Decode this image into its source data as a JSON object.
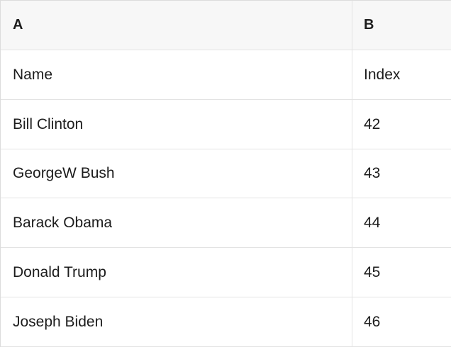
{
  "theme": {
    "header_bg": "#f7f7f7",
    "border_color": "#e3e3e3",
    "outer_border_color": "#dcdcdc",
    "text_color": "#1c1c1c",
    "row_bg": "#ffffff"
  },
  "table": {
    "columns": [
      "A",
      "B"
    ],
    "rows": [
      [
        "Name",
        "Index"
      ],
      [
        "Bill Clinton",
        "42"
      ],
      [
        "GeorgeW Bush",
        "43"
      ],
      [
        "Barack Obama",
        "44"
      ],
      [
        "Donald Trump",
        "45"
      ],
      [
        "Joseph Biden",
        "46"
      ]
    ]
  }
}
